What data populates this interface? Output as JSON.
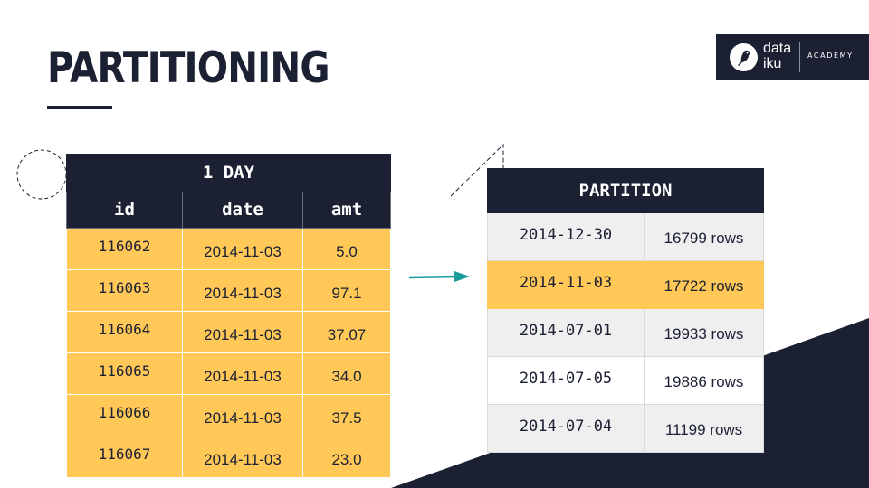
{
  "slide": {
    "title": "PARTITIONING",
    "colors": {
      "navy": "#1b2033",
      "highlight": "#ffc857",
      "arrow": "#1a9c9a"
    }
  },
  "logo": {
    "icon": "dataiku-bird-icon",
    "word_line1": "data",
    "word_line2": "iku",
    "academy": "ACADEMY"
  },
  "left_table": {
    "caption": "1 DAY",
    "columns": [
      "id",
      "date",
      "amt"
    ],
    "rows": [
      [
        "116062",
        "2014-11-03",
        "5.0"
      ],
      [
        "116063",
        "2014-11-03",
        "97.1"
      ],
      [
        "116064",
        "2014-11-03",
        "37.07"
      ],
      [
        "116065",
        "2014-11-03",
        "34.0"
      ],
      [
        "116066",
        "2014-11-03",
        "37.5"
      ],
      [
        "116067",
        "2014-11-03",
        "23.0"
      ]
    ]
  },
  "right_table": {
    "caption": "PARTITION",
    "rows": [
      [
        "2014-12-30",
        "16799 rows"
      ],
      [
        "2014-11-03",
        "17722 rows"
      ],
      [
        "2014-07-01",
        "19933 rows"
      ],
      [
        "2014-07-05",
        "19886 rows"
      ],
      [
        "2014-07-04",
        "11199 rows"
      ]
    ],
    "highlighted_row": 1
  },
  "arrow": {
    "icon": "arrow-right-icon"
  }
}
